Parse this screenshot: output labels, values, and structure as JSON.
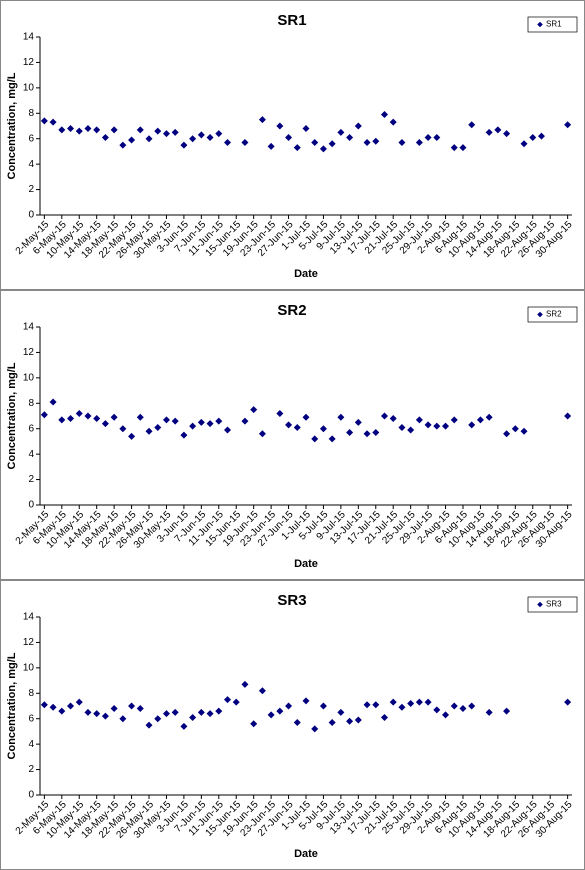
{
  "chart_data": [
    {
      "type": "scatter",
      "title": "SR1",
      "x_label": "Date",
      "y_label": "Concentration, mg/L",
      "categories": [
        "2-May-15",
        null,
        "6-May-15",
        null,
        "10-May-15",
        null,
        "14-May-15",
        null,
        "18-May-15",
        null,
        "22-May-15",
        null,
        "26-May-15",
        null,
        "30-May-15",
        null,
        "3-Jun-15",
        null,
        "7-Jun-15",
        null,
        "11-Jun-15",
        null,
        "15-Jun-15",
        null,
        "19-Jun-15",
        null,
        "23-Jun-15",
        null,
        "27-Jun-15",
        null,
        "1-Jul-15",
        null,
        "5-Jul-15",
        null,
        "9-Jul-15",
        null,
        "13-Jul-15",
        null,
        "17-Jul-15",
        null,
        "21-Jul-15",
        null,
        "25-Jul-15",
        null,
        "29-Jul-15",
        null,
        "2-Aug-15",
        null,
        "6-Aug-15",
        null,
        "10-Aug-15",
        null,
        "14-Aug-15",
        null,
        "18-Aug-15",
        null,
        "22-Aug-15",
        null,
        "26-Aug-15",
        null,
        "30-Aug-15"
      ],
      "series": [
        {
          "name": "SR1",
          "color": "#000080",
          "values": [
            7.4,
            7.3,
            6.7,
            6.8,
            6.6,
            6.8,
            6.7,
            6.1,
            6.7,
            5.5,
            5.9,
            6.7,
            6.0,
            6.6,
            6.4,
            6.5,
            5.5,
            6.0,
            6.3,
            6.1,
            6.4,
            5.7,
            null,
            5.7,
            null,
            7.5,
            5.4,
            7.0,
            6.1,
            5.3,
            6.8,
            5.7,
            5.2,
            5.6,
            6.5,
            6.1,
            7.0,
            5.7,
            5.8,
            7.9,
            7.3,
            5.7,
            null,
            5.7,
            6.1,
            6.1,
            null,
            5.3,
            5.3,
            7.1,
            null,
            6.5,
            6.7,
            6.4,
            null,
            5.6,
            6.1,
            6.2,
            null,
            null,
            7.1
          ]
        }
      ],
      "ylim": [
        0,
        14
      ],
      "yticks": [
        0,
        2,
        4,
        6,
        8,
        10,
        12,
        14
      ],
      "grid": false,
      "legend": "top-right"
    },
    {
      "type": "scatter",
      "title": "SR2",
      "x_label": "Date",
      "y_label": "Concentration, mg/L",
      "categories": [
        "2-May-15",
        null,
        "6-May-15",
        null,
        "10-May-15",
        null,
        "14-May-15",
        null,
        "18-May-15",
        null,
        "22-May-15",
        null,
        "26-May-15",
        null,
        "30-May-15",
        null,
        "3-Jun-15",
        null,
        "7-Jun-15",
        null,
        "11-Jun-15",
        null,
        "15-Jun-15",
        null,
        "19-Jun-15",
        null,
        "23-Jun-15",
        null,
        "27-Jun-15",
        null,
        "1-Jul-15",
        null,
        "5-Jul-15",
        null,
        "9-Jul-15",
        null,
        "13-Jul-15",
        null,
        "17-Jul-15",
        null,
        "21-Jul-15",
        null,
        "25-Jul-15",
        null,
        "29-Jul-15",
        null,
        "2-Aug-15",
        null,
        "6-Aug-15",
        null,
        "10-Aug-15",
        null,
        "14-Aug-15",
        null,
        "18-Aug-15",
        null,
        "22-Aug-15",
        null,
        "26-Aug-15",
        null,
        "30-Aug-15"
      ],
      "series": [
        {
          "name": "SR2",
          "color": "#000080",
          "values": [
            7.1,
            8.1,
            6.7,
            6.8,
            7.2,
            7.0,
            6.8,
            6.4,
            6.9,
            6.0,
            5.4,
            6.9,
            5.8,
            6.1,
            6.7,
            6.6,
            5.5,
            6.2,
            6.5,
            6.4,
            6.6,
            5.9,
            null,
            6.6,
            7.5,
            5.6,
            null,
            7.2,
            6.3,
            6.1,
            6.9,
            5.2,
            6.0,
            5.2,
            6.9,
            5.7,
            6.5,
            5.6,
            5.7,
            7.0,
            6.8,
            6.1,
            5.9,
            6.7,
            6.3,
            6.2,
            6.2,
            6.7,
            null,
            6.3,
            6.7,
            6.9,
            null,
            5.6,
            6.0,
            5.8,
            null,
            null,
            null,
            null,
            7.0
          ]
        }
      ],
      "ylim": [
        0,
        14
      ],
      "yticks": [
        0,
        2,
        4,
        6,
        8,
        10,
        12,
        14
      ],
      "grid": false,
      "legend": "top-right"
    },
    {
      "type": "scatter",
      "title": "SR3",
      "x_label": "Date",
      "y_label": "Concentration, mg/L",
      "categories": [
        "2-May-15",
        null,
        "6-May-15",
        null,
        "10-May-15",
        null,
        "14-May-15",
        null,
        "18-May-15",
        null,
        "22-May-15",
        null,
        "26-May-15",
        null,
        "30-May-15",
        null,
        "3-Jun-15",
        null,
        "7-Jun-15",
        null,
        "11-Jun-15",
        null,
        "15-Jun-15",
        null,
        "19-Jun-15",
        null,
        "23-Jun-15",
        null,
        "27-Jun-15",
        null,
        "1-Jul-15",
        null,
        "5-Jul-15",
        null,
        "9-Jul-15",
        null,
        "13-Jul-15",
        null,
        "17-Jul-15",
        null,
        "21-Jul-15",
        null,
        "25-Jul-15",
        null,
        "29-Jul-15",
        null,
        "2-Aug-15",
        null,
        "6-Aug-15",
        null,
        "10-Aug-15",
        null,
        "14-Aug-15",
        null,
        "18-Aug-15",
        null,
        "22-Aug-15",
        null,
        "26-Aug-15",
        null,
        "30-Aug-15"
      ],
      "series": [
        {
          "name": "SR3",
          "color": "#000080",
          "values": [
            7.1,
            6.9,
            6.6,
            7.0,
            7.3,
            6.5,
            6.4,
            6.2,
            6.8,
            6.0,
            7.0,
            6.8,
            5.5,
            6.0,
            6.4,
            6.5,
            5.4,
            6.1,
            6.5,
            6.4,
            6.6,
            7.5,
            7.3,
            8.7,
            5.6,
            8.2,
            6.3,
            6.6,
            7.0,
            5.7,
            7.4,
            5.2,
            7.0,
            5.7,
            6.5,
            5.8,
            5.9,
            7.1,
            7.1,
            6.1,
            7.3,
            6.9,
            7.2,
            7.3,
            7.3,
            6.7,
            6.3,
            7.0,
            6.8,
            7.0,
            null,
            6.5,
            null,
            6.6,
            null,
            null,
            null,
            null,
            null,
            null,
            7.3
          ]
        }
      ],
      "ylim": [
        0,
        14
      ],
      "yticks": [
        0,
        2,
        4,
        6,
        8,
        10,
        12,
        14
      ],
      "grid": false,
      "legend": "top-right"
    }
  ]
}
